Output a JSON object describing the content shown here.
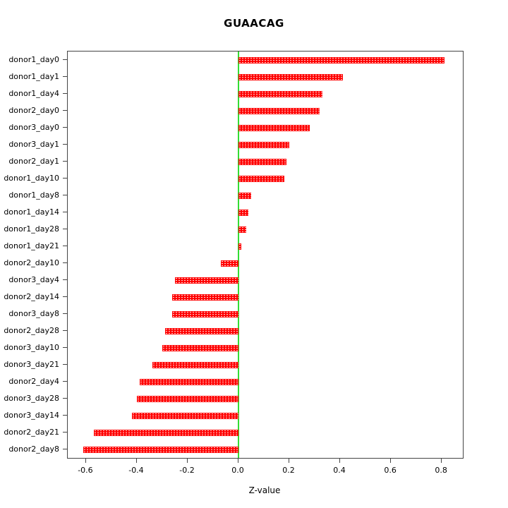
{
  "chart_data": {
    "type": "bar",
    "orientation": "horizontal",
    "title": "GUAACAG",
    "xlabel": "Z-value",
    "ylabel": "",
    "xlim": [
      -0.672,
      0.883
    ],
    "xtick_labels": [
      "-0.6",
      "-0.4",
      "-0.2",
      "0.0",
      "0.2",
      "0.4",
      "0.6",
      "0.8"
    ],
    "xtick_values": [
      -0.6,
      -0.4,
      -0.2,
      0.0,
      0.2,
      0.4,
      0.6,
      0.8
    ],
    "categories": [
      "donor1_day0",
      "donor1_day1",
      "donor1_day4",
      "donor2_day0",
      "donor3_day0",
      "donor3_day1",
      "donor2_day1",
      "donor1_day10",
      "donor1_day8",
      "donor1_day14",
      "donor1_day28",
      "donor1_day21",
      "donor2_day10",
      "donor3_day4",
      "donor2_day14",
      "donor3_day8",
      "donor2_day28",
      "donor3_day10",
      "donor3_day21",
      "donor2_day4",
      "donor3_day28",
      "donor3_day14",
      "donor2_day21",
      "donor2_day8"
    ],
    "values": [
      0.81,
      0.41,
      0.33,
      0.32,
      0.28,
      0.2,
      0.19,
      0.18,
      0.05,
      0.04,
      0.03,
      0.01,
      -0.07,
      -0.25,
      -0.26,
      -0.26,
      -0.29,
      -0.3,
      -0.34,
      -0.39,
      -0.4,
      -0.42,
      -0.57,
      -0.61
    ],
    "colors": {
      "bar": "#ff0000",
      "zero_line": "#33dd33",
      "box": "#444444",
      "text": "#000000"
    },
    "grid": false,
    "legend": null
  }
}
